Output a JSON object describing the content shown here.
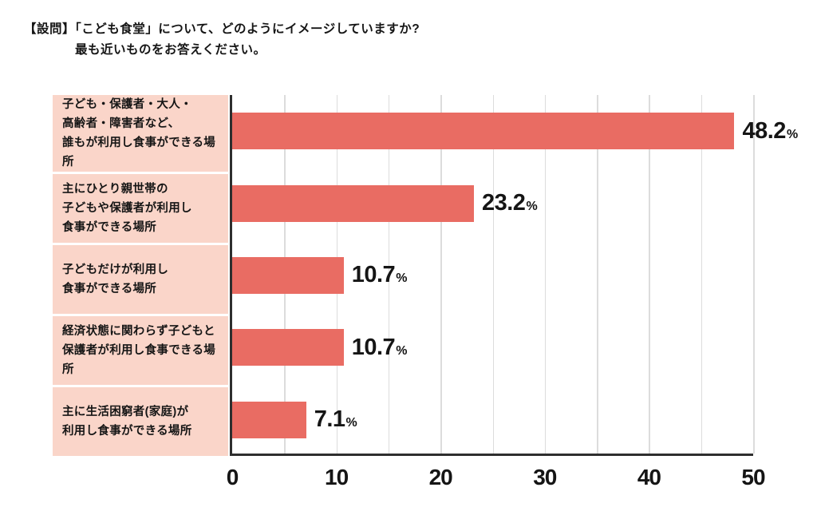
{
  "title": {
    "line1": "【設問】「こども食堂」について、どのようにイメージしていますか?",
    "line2": "最も近いものをお答えください。"
  },
  "chart_data": {
    "type": "bar",
    "orientation": "horizontal",
    "categories": [
      [
        "子ども・保護者・大人・",
        "高齢者・障害者など、",
        "誰もが利用し食事ができる場所"
      ],
      [
        "主にひとり親世帯の",
        "子どもや保護者が利用し",
        "食事ができる場所"
      ],
      [
        "子どもだけが利用し",
        "食事ができる場所"
      ],
      [
        "経済状態に関わらず子どもと",
        "保護者が利用し食事できる場所"
      ],
      [
        "主に生活困窮者(家庭)が",
        "利用し食事ができる場所"
      ]
    ],
    "values": [
      48.2,
      23.2,
      10.7,
      10.7,
      7.1
    ],
    "value_suffix": "%",
    "xlim": [
      0,
      50
    ],
    "x_ticks": [
      0,
      10,
      20,
      30,
      40,
      50
    ],
    "gridline_step": 5,
    "grid": true,
    "legend": false,
    "xlabel": "",
    "ylabel": ""
  },
  "colors": {
    "bar": "#e96c63",
    "category_bg": "#fad5c9",
    "grid_line": "#dcdcdc",
    "axis": "#2e2e2e",
    "text": "#151515",
    "background": "#ffffff"
  }
}
